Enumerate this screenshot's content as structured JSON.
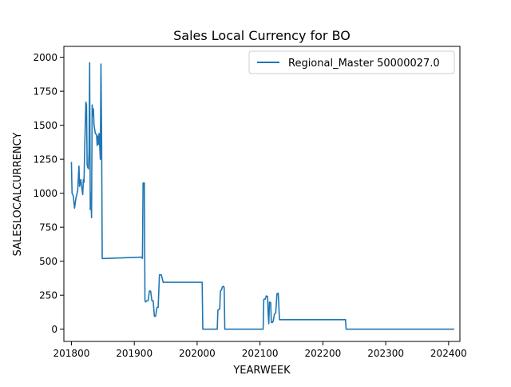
{
  "chart_data": {
    "type": "line",
    "title": "Sales Local Currency for BO",
    "xlabel": "YEARWEEK",
    "ylabel": "SALESLOCALCURRENCY",
    "xlim": [
      201788,
      202418
    ],
    "ylim": [
      -90,
      2080
    ],
    "xticks": [
      201800,
      201900,
      202000,
      202100,
      202200,
      202300,
      202400
    ],
    "yticks": [
      0,
      250,
      500,
      750,
      1000,
      1250,
      1500,
      1750,
      2000
    ],
    "grid": false,
    "legend_position": "top-right",
    "series": [
      {
        "name": "Regional_Master 50000027.0",
        "color": "#1f77b4",
        "points": [
          [
            201800,
            1230
          ],
          [
            201801,
            1000
          ],
          [
            201803,
            980
          ],
          [
            201805,
            890
          ],
          [
            201807,
            960
          ],
          [
            201810,
            1020
          ],
          [
            201812,
            1200
          ],
          [
            201813,
            1050
          ],
          [
            201815,
            1100
          ],
          [
            201816,
            1060
          ],
          [
            201818,
            990
          ],
          [
            201819,
            1100
          ],
          [
            201820,
            1080
          ],
          [
            201821,
            1300
          ],
          [
            201822,
            1500
          ],
          [
            201823,
            1670
          ],
          [
            201824,
            1650
          ],
          [
            201825,
            1210
          ],
          [
            201826,
            1190
          ],
          [
            201827,
            1180
          ],
          [
            201828,
            1300
          ],
          [
            201829,
            1960
          ],
          [
            201830,
            880
          ],
          [
            201831,
            1000
          ],
          [
            201832,
            820
          ],
          [
            201833,
            1650
          ],
          [
            201834,
            1570
          ],
          [
            201835,
            1620
          ],
          [
            201836,
            1500
          ],
          [
            201838,
            1440
          ],
          [
            201840,
            1430
          ],
          [
            201841,
            1350
          ],
          [
            201842,
            1420
          ],
          [
            201843,
            1360
          ],
          [
            201844,
            1440
          ],
          [
            201845,
            1350
          ],
          [
            201846,
            1250
          ],
          [
            201847,
            1950
          ],
          [
            201848,
            1430
          ],
          [
            201849,
            520
          ],
          [
            201852,
            520
          ],
          [
            201912,
            530
          ],
          [
            201913,
            520
          ],
          [
            201914,
            1075
          ],
          [
            201916,
            1075
          ],
          [
            201917,
            210
          ],
          [
            201918,
            200
          ],
          [
            201920,
            210
          ],
          [
            201922,
            210
          ],
          [
            201924,
            280
          ],
          [
            201926,
            280
          ],
          [
            201928,
            210
          ],
          [
            201930,
            210
          ],
          [
            201932,
            95
          ],
          [
            201934,
            95
          ],
          [
            201936,
            160
          ],
          [
            201938,
            160
          ],
          [
            201940,
            400
          ],
          [
            201943,
            400
          ],
          [
            201946,
            345
          ],
          [
            202008,
            345
          ],
          [
            202009,
            0
          ],
          [
            202032,
            0
          ],
          [
            202033,
            140
          ],
          [
            202036,
            150
          ],
          [
            202037,
            280
          ],
          [
            202039,
            290
          ],
          [
            202040,
            310
          ],
          [
            202042,
            315
          ],
          [
            202043,
            305
          ],
          [
            202044,
            0
          ],
          [
            202105,
            0
          ],
          [
            202106,
            220
          ],
          [
            202108,
            220
          ],
          [
            202110,
            245
          ],
          [
            202112,
            240
          ],
          [
            202113,
            110
          ],
          [
            202114,
            40
          ],
          [
            202115,
            200
          ],
          [
            202117,
            195
          ],
          [
            202118,
            50
          ],
          [
            202120,
            50
          ],
          [
            202121,
            60
          ],
          [
            202123,
            110
          ],
          [
            202125,
            120
          ],
          [
            202127,
            260
          ],
          [
            202129,
            265
          ],
          [
            202131,
            70
          ],
          [
            202236,
            70
          ],
          [
            202237,
            0
          ],
          [
            202409,
            0
          ]
        ]
      }
    ]
  }
}
